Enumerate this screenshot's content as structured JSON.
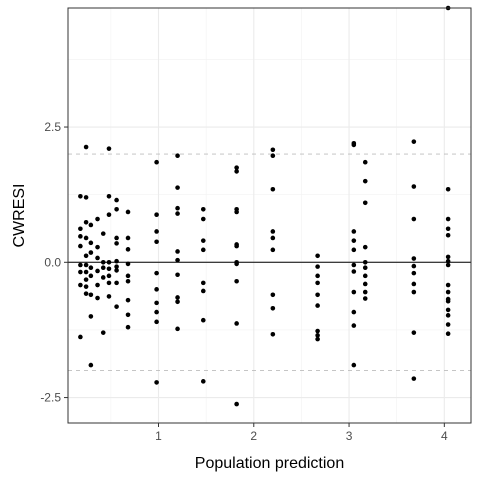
{
  "chart_data": {
    "type": "scatter",
    "title": "",
    "xlabel": "Population prediction",
    "ylabel": "CWRESI",
    "xlim": [
      0.05,
      4.28
    ],
    "ylim": [
      -2.97,
      4.7
    ],
    "x_ticks": [
      1,
      2,
      3,
      4
    ],
    "x_tick_labels": [
      "1",
      "2",
      "3",
      "4"
    ],
    "y_ticks": [
      -2.5,
      0.0,
      2.5
    ],
    "y_tick_labels": [
      "-2.5",
      "0.0",
      "2.5"
    ],
    "grid": true,
    "reference_lines": [
      {
        "y": 0,
        "style": "solid",
        "color": "#000000"
      },
      {
        "y": 2,
        "style": "dashed",
        "color": "#bdbdbd"
      },
      {
        "y": -2,
        "style": "dashed",
        "color": "#bdbdbd"
      }
    ],
    "point_color": "#000000",
    "points": [
      [
        0.18,
        0.62
      ],
      [
        0.18,
        0.48
      ],
      [
        0.18,
        0.3
      ],
      [
        0.18,
        1.22
      ],
      [
        0.18,
        -0.05
      ],
      [
        0.18,
        -0.18
      ],
      [
        0.18,
        -0.42
      ],
      [
        0.18,
        -1.38
      ],
      [
        0.24,
        2.13
      ],
      [
        0.24,
        1.2
      ],
      [
        0.24,
        0.74
      ],
      [
        0.24,
        0.45
      ],
      [
        0.24,
        0.12
      ],
      [
        0.24,
        -0.05
      ],
      [
        0.24,
        -0.18
      ],
      [
        0.24,
        -0.32
      ],
      [
        0.24,
        -0.45
      ],
      [
        0.24,
        -0.58
      ],
      [
        0.29,
        0.69
      ],
      [
        0.29,
        0.36
      ],
      [
        0.29,
        0.18
      ],
      [
        0.29,
        -0.1
      ],
      [
        0.29,
        -0.25
      ],
      [
        0.29,
        -0.6
      ],
      [
        0.29,
        -1.0
      ],
      [
        0.29,
        -1.9
      ],
      [
        0.36,
        0.8
      ],
      [
        0.36,
        0.28
      ],
      [
        0.36,
        0.08
      ],
      [
        0.36,
        -0.16
      ],
      [
        0.36,
        -0.42
      ],
      [
        0.36,
        -0.66
      ],
      [
        0.42,
        0.53
      ],
      [
        0.42,
        0.0
      ],
      [
        0.42,
        -0.1
      ],
      [
        0.42,
        -0.28
      ],
      [
        0.42,
        -1.3
      ],
      [
        0.48,
        2.1
      ],
      [
        0.48,
        1.22
      ],
      [
        0.48,
        0.88
      ],
      [
        0.48,
        0.0
      ],
      [
        0.48,
        -0.12
      ],
      [
        0.48,
        -0.25
      ],
      [
        0.48,
        -0.38
      ],
      [
        0.48,
        -0.63
      ],
      [
        0.56,
        1.15
      ],
      [
        0.56,
        0.98
      ],
      [
        0.56,
        0.45
      ],
      [
        0.56,
        0.35
      ],
      [
        0.56,
        0.02
      ],
      [
        0.56,
        -0.08
      ],
      [
        0.56,
        -0.15
      ],
      [
        0.56,
        -0.38
      ],
      [
        0.56,
        -0.82
      ],
      [
        0.68,
        0.93
      ],
      [
        0.68,
        0.45
      ],
      [
        0.68,
        0.24
      ],
      [
        0.68,
        -0.03
      ],
      [
        0.68,
        -0.25
      ],
      [
        0.68,
        -0.35
      ],
      [
        0.68,
        -0.7
      ],
      [
        0.68,
        -0.97
      ],
      [
        0.68,
        -1.2
      ],
      [
        0.98,
        1.85
      ],
      [
        0.98,
        0.88
      ],
      [
        0.98,
        0.57
      ],
      [
        0.98,
        0.38
      ],
      [
        0.98,
        -0.2
      ],
      [
        0.98,
        -0.5
      ],
      [
        0.98,
        -0.75
      ],
      [
        0.98,
        -0.92
      ],
      [
        0.98,
        -1.1
      ],
      [
        0.98,
        -2.22
      ],
      [
        1.2,
        1.97
      ],
      [
        1.2,
        1.38
      ],
      [
        1.2,
        1.0
      ],
      [
        1.2,
        0.9
      ],
      [
        1.2,
        0.2
      ],
      [
        1.2,
        0.04
      ],
      [
        1.2,
        -0.23
      ],
      [
        1.2,
        -0.65
      ],
      [
        1.2,
        -0.73
      ],
      [
        1.2,
        -1.23
      ],
      [
        1.47,
        0.98
      ],
      [
        1.47,
        0.8
      ],
      [
        1.47,
        0.4
      ],
      [
        1.47,
        0.23
      ],
      [
        1.47,
        -0.38
      ],
      [
        1.47,
        -0.53
      ],
      [
        1.47,
        -1.07
      ],
      [
        1.47,
        -2.2
      ],
      [
        1.82,
        1.75
      ],
      [
        1.82,
        1.68
      ],
      [
        1.82,
        0.98
      ],
      [
        1.82,
        0.93
      ],
      [
        1.82,
        0.33
      ],
      [
        1.82,
        0.3
      ],
      [
        1.82,
        0.0
      ],
      [
        1.82,
        -0.03
      ],
      [
        1.82,
        -0.35
      ],
      [
        1.82,
        -1.13
      ],
      [
        1.82,
        -2.62
      ],
      [
        2.2,
        2.08
      ],
      [
        2.2,
        1.97
      ],
      [
        2.2,
        1.35
      ],
      [
        2.2,
        0.57
      ],
      [
        2.2,
        0.45
      ],
      [
        2.2,
        0.23
      ],
      [
        2.2,
        -0.6
      ],
      [
        2.2,
        -0.85
      ],
      [
        2.2,
        -1.33
      ],
      [
        2.67,
        0.12
      ],
      [
        2.67,
        -0.08
      ],
      [
        2.67,
        -0.25
      ],
      [
        2.67,
        -0.38
      ],
      [
        2.67,
        -0.6
      ],
      [
        2.67,
        -0.8
      ],
      [
        2.67,
        -1.27
      ],
      [
        2.67,
        -1.35
      ],
      [
        2.67,
        -1.42
      ],
      [
        3.05,
        2.2
      ],
      [
        3.05,
        2.17
      ],
      [
        3.05,
        0.57
      ],
      [
        3.05,
        0.4
      ],
      [
        3.05,
        0.23
      ],
      [
        3.05,
        -0.05
      ],
      [
        3.05,
        -0.17
      ],
      [
        3.05,
        -0.55
      ],
      [
        3.05,
        -0.92
      ],
      [
        3.05,
        -1.17
      ],
      [
        3.05,
        -1.9
      ],
      [
        3.17,
        1.85
      ],
      [
        3.17,
        1.5
      ],
      [
        3.17,
        1.1
      ],
      [
        3.17,
        0.28
      ],
      [
        3.17,
        0.0
      ],
      [
        3.17,
        -0.1
      ],
      [
        3.17,
        -0.25
      ],
      [
        3.17,
        -0.4
      ],
      [
        3.17,
        -0.55
      ],
      [
        3.17,
        -0.67
      ],
      [
        3.68,
        2.23
      ],
      [
        3.68,
        1.4
      ],
      [
        3.68,
        0.8
      ],
      [
        3.68,
        0.07
      ],
      [
        3.68,
        -0.07
      ],
      [
        3.68,
        -0.2
      ],
      [
        3.68,
        -0.4
      ],
      [
        3.68,
        -0.55
      ],
      [
        3.68,
        -1.3
      ],
      [
        3.68,
        -2.15
      ],
      [
        4.04,
        4.7
      ],
      [
        4.04,
        1.35
      ],
      [
        4.04,
        0.8
      ],
      [
        4.04,
        0.62
      ],
      [
        4.04,
        0.5
      ],
      [
        4.04,
        0.1
      ],
      [
        4.04,
        0.02
      ],
      [
        4.04,
        -0.05
      ],
      [
        4.04,
        -0.42
      ],
      [
        4.04,
        -0.55
      ],
      [
        4.04,
        -0.68
      ],
      [
        4.04,
        -0.72
      ],
      [
        4.04,
        -0.88
      ],
      [
        4.04,
        -0.98
      ],
      [
        4.04,
        -1.15
      ],
      [
        4.04,
        -1.32
      ]
    ]
  }
}
